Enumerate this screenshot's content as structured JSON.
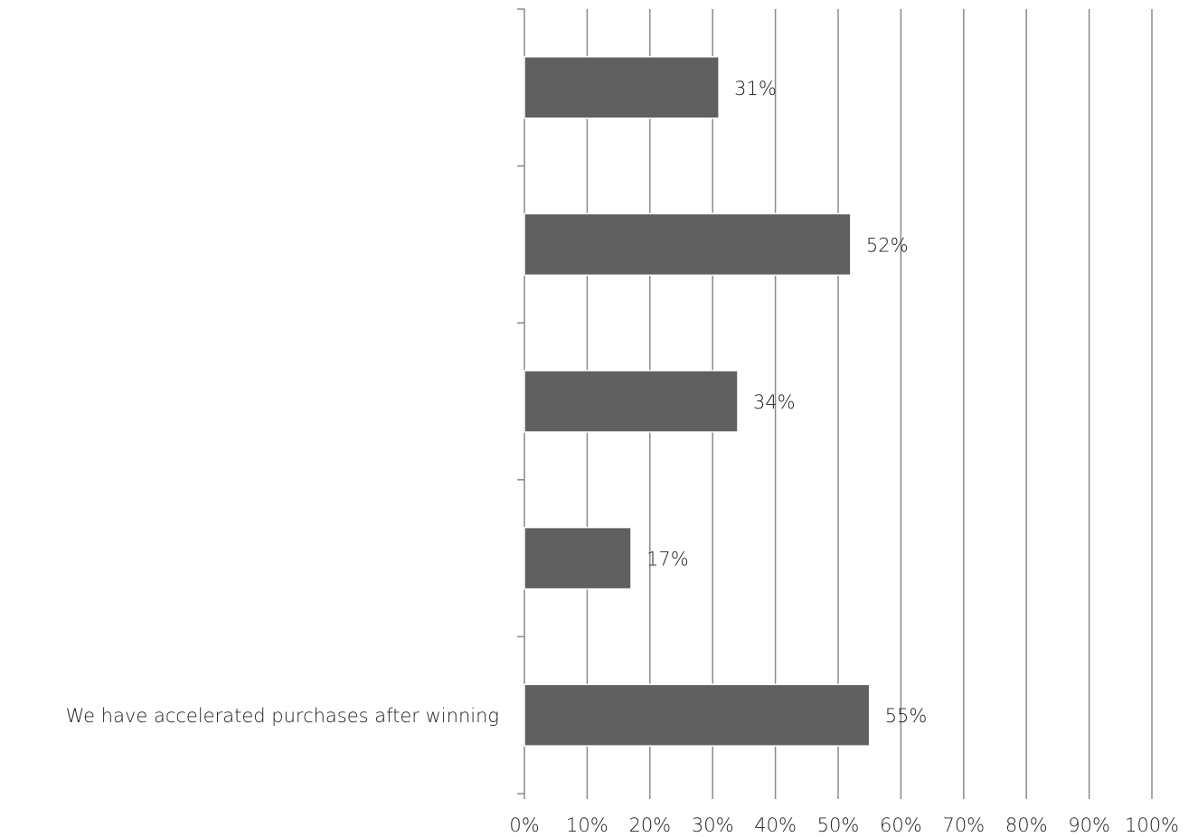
{
  "chart_data": {
    "type": "bar",
    "orientation": "horizontal",
    "categories": [
      "",
      "",
      "",
      "",
      "We have accelerated purchases after winning"
    ],
    "values": [
      31,
      52,
      34,
      17,
      55
    ],
    "data_labels": [
      "31%",
      "52%",
      "34%",
      "17%",
      "55%"
    ],
    "xlim": [
      0,
      100
    ],
    "x_ticks": [
      0,
      10,
      20,
      30,
      40,
      50,
      60,
      70,
      80,
      90,
      100
    ],
    "x_tick_labels": [
      "0%",
      "10%",
      "20%",
      "30%",
      "40%",
      "50%",
      "60%",
      "70%",
      "80%",
      "90%",
      "100%"
    ],
    "grid": "vertical",
    "legend": "none",
    "colors": {
      "bar": "#606060",
      "grid": "#8a8a8a",
      "text": "#222222"
    }
  }
}
